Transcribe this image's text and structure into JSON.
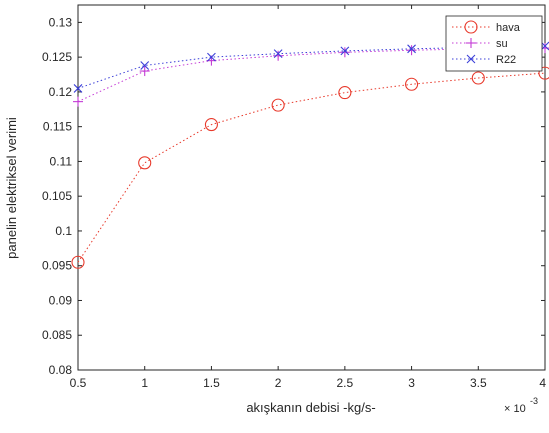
{
  "chart_data": {
    "type": "line",
    "xlabel": "akışkanın debisi -kg/s-",
    "ylabel": "panelin elektriksel verimi",
    "x_exponent_label": "× 10",
    "x_exponent_power": "-3",
    "xlim": [
      0.5,
      4
    ],
    "ylim": [
      0.08,
      0.1325
    ],
    "x_ticks": [
      "0.5",
      "1",
      "1.5",
      "2",
      "2.5",
      "3",
      "3.5",
      "4"
    ],
    "y_ticks": [
      "0.08",
      "0.085",
      "0.09",
      "0.095",
      "0.1",
      "0.105",
      "0.11",
      "0.115",
      "0.12",
      "0.125",
      "0.13"
    ],
    "grid": false,
    "legend_position": "top-right",
    "x": [
      0.5,
      1,
      1.5,
      2,
      2.5,
      3,
      3.5,
      4
    ],
    "series": [
      {
        "name": "hava",
        "marker": "circle",
        "color": "#e8392b",
        "values": [
          0.0955,
          0.1098,
          0.1153,
          0.1181,
          0.1199,
          0.1211,
          0.122,
          0.1227
        ]
      },
      {
        "name": "su",
        "marker": "plus",
        "color": "#c43bd6",
        "values": [
          0.1186,
          0.123,
          0.1245,
          0.1252,
          0.1257,
          0.126,
          0.1262,
          0.1263
        ]
      },
      {
        "name": "R22",
        "marker": "x",
        "color": "#3b3fd8",
        "values": [
          0.1205,
          0.1238,
          0.125,
          0.1255,
          0.1259,
          0.1262,
          0.1264,
          0.1266
        ]
      }
    ]
  }
}
